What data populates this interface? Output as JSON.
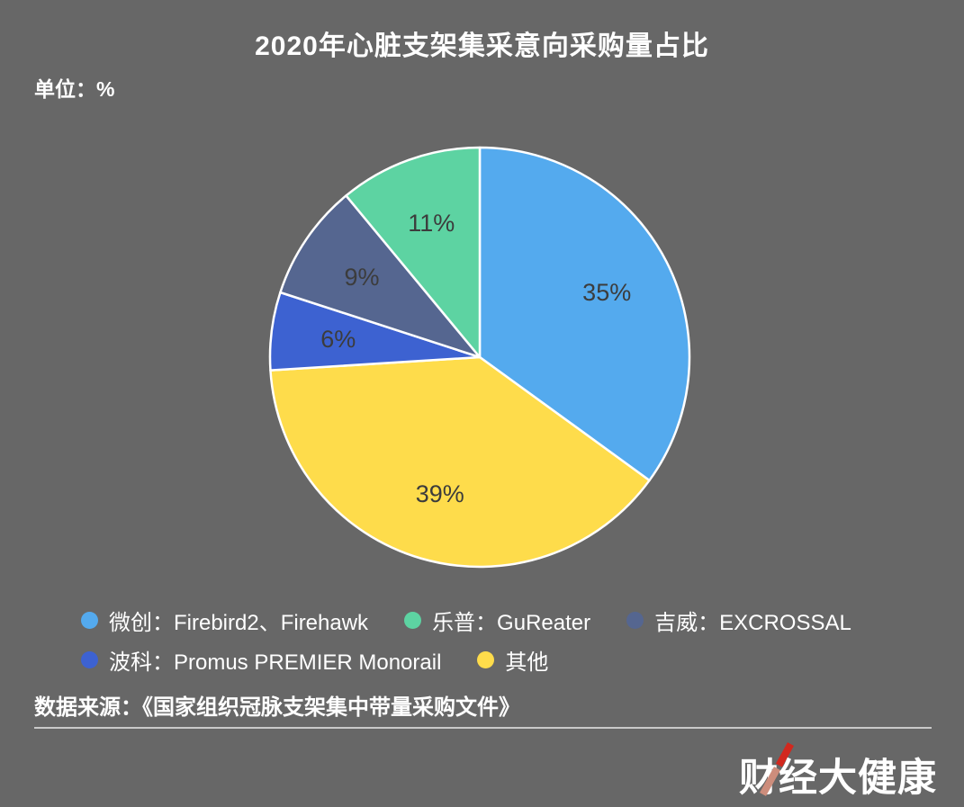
{
  "page": {
    "title": "2020年心脏支架集采意向采购量占比",
    "unit_label": "单位：%",
    "source": "数据来源：《国家组织冠脉支架集中带量采购文件》",
    "logo_text": "财经大健康",
    "background_color": "#676767",
    "divider_color": "#c9c9c9",
    "logo_slash_colors": [
      "#d2281e",
      "#cd8d7c"
    ]
  },
  "chart_data": {
    "type": "pie",
    "title": "2020年心脏支架集采意向采购量占比",
    "unit": "%",
    "start_angle_deg": 0,
    "direction": "clockwise",
    "label_color": "#3c3c3c",
    "stroke_color": "#ffffff",
    "legend_position": "bottom",
    "slices": [
      {
        "label": "微创：Firebird2、Firehawk",
        "value": 35,
        "display": "35%",
        "color": "#54aaee"
      },
      {
        "label": "其他",
        "value": 39,
        "display": "39%",
        "color": "#fedc4b"
      },
      {
        "label": "波科：Promus PREMIER Monorail",
        "value": 6,
        "display": "6%",
        "color": "#3d62d1"
      },
      {
        "label": "吉威：EXCROSSAL",
        "value": 9,
        "display": "9%",
        "color": "#556690"
      },
      {
        "label": "乐普：GuReater",
        "value": 11,
        "display": "11%",
        "color": "#5dd3a2"
      }
    ],
    "legend": [
      {
        "label": "微创：Firebird2、Firehawk",
        "color": "#54aaee"
      },
      {
        "label": "乐普：GuReater",
        "color": "#5dd3a2"
      },
      {
        "label": "吉威：EXCROSSAL",
        "color": "#556690"
      },
      {
        "label": "波科：Promus PREMIER Monorail",
        "color": "#3d62d1"
      },
      {
        "label": "其他",
        "color": "#fedc4b"
      }
    ]
  }
}
